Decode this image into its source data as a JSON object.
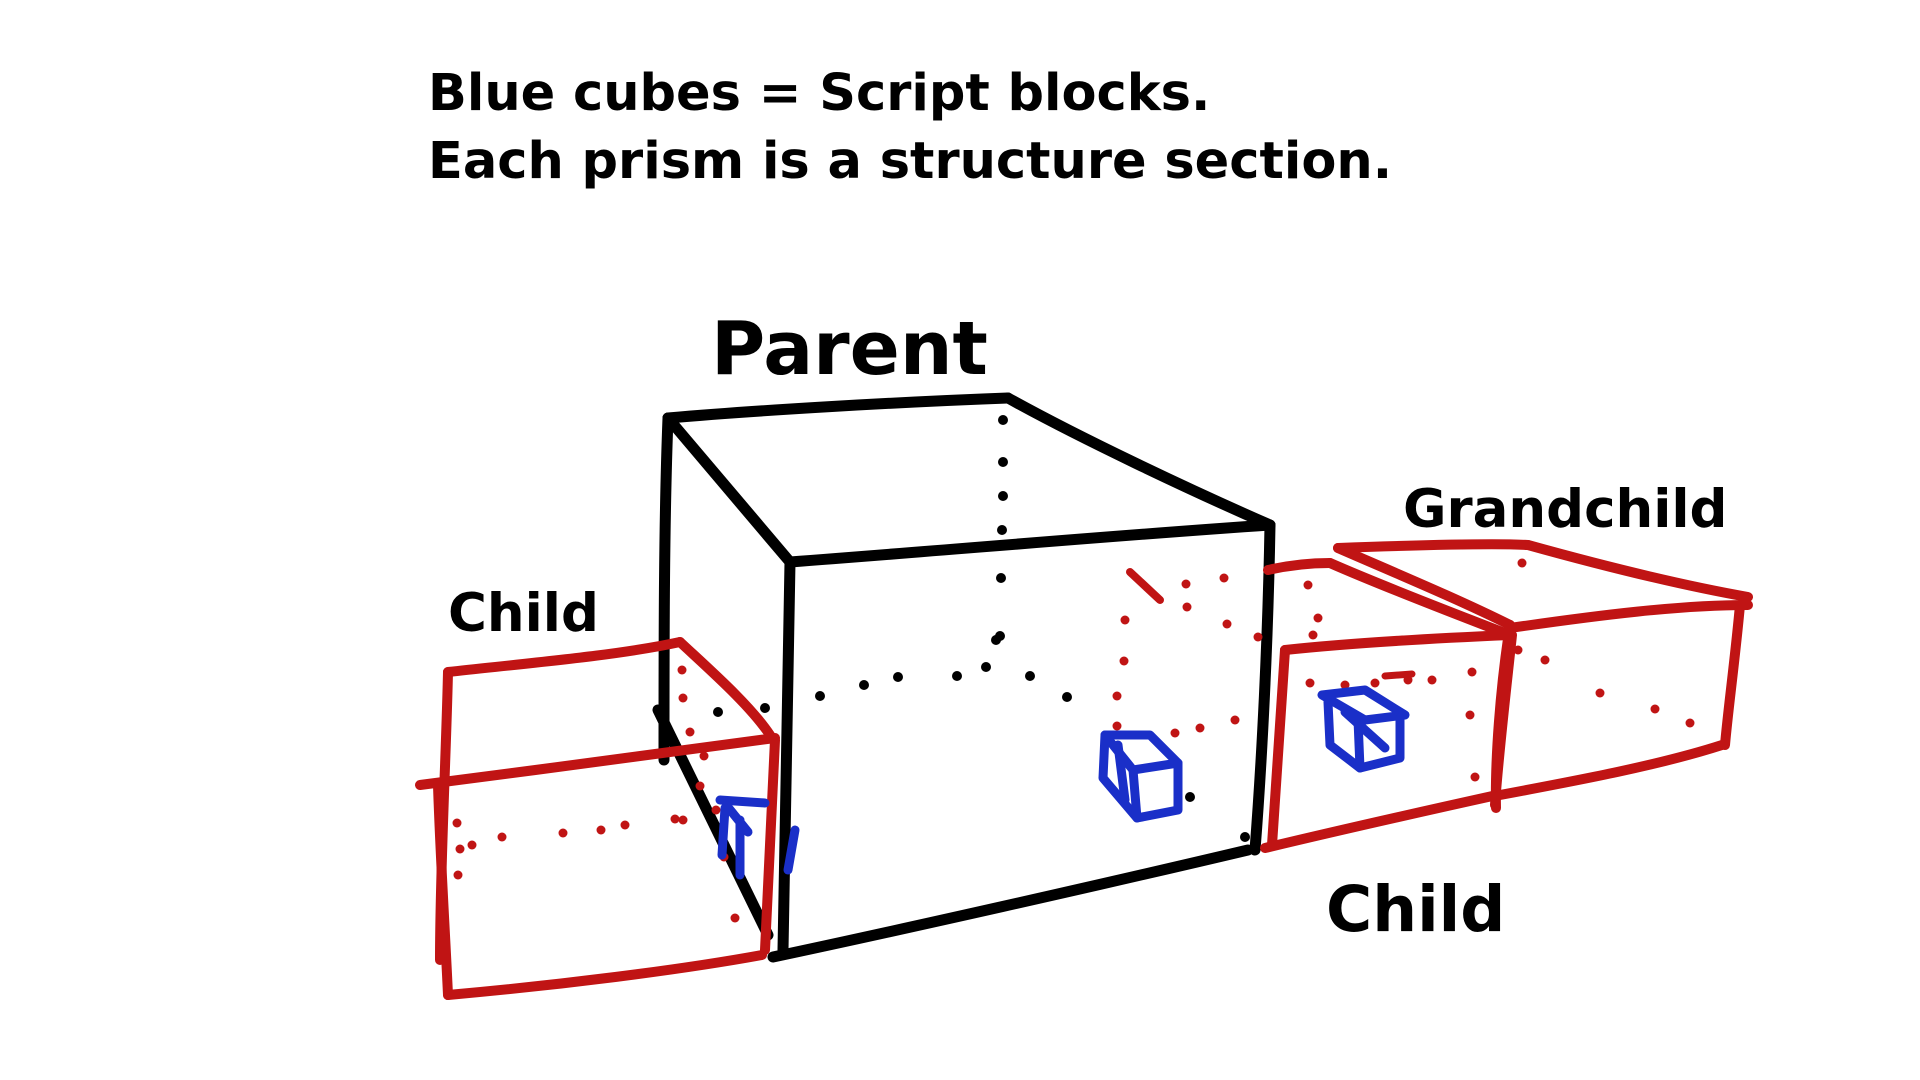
{
  "caption": {
    "line1": "Blue cubes = Script blocks.",
    "line2": "Each prism is a structure section."
  },
  "labels": {
    "parent": "Parent",
    "child_left": "Child",
    "grandchild": "Grandchild",
    "child_right": "Child"
  },
  "colors": {
    "parent_stroke": "#000000",
    "child_stroke": "#c01414",
    "script_block": "#1a2fc8",
    "background": "#ffffff"
  }
}
